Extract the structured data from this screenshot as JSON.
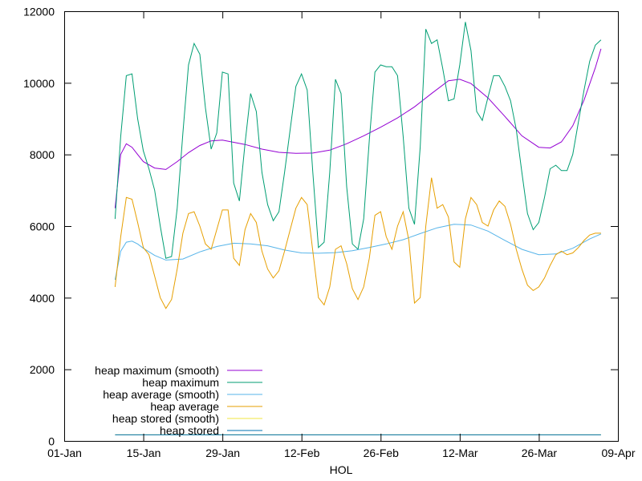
{
  "chart_data": {
    "type": "line",
    "title": "",
    "xlabel": "HOL",
    "ylabel": "",
    "x_axis_type": "date",
    "xlim": [
      "2023-01-01",
      "2023-04-09"
    ],
    "ylim": [
      0,
      12000
    ],
    "x_ticks": [
      "01-Jan",
      "15-Jan",
      "29-Jan",
      "12-Feb",
      "26-Feb",
      "12-Mar",
      "26-Mar",
      "09-Apr"
    ],
    "y_ticks": [
      "0",
      "2000",
      "4000",
      "6000",
      "8000",
      "10000",
      "12000"
    ],
    "grid": false,
    "legend_position": "bottom-left",
    "series": [
      {
        "name": "heap maximum (smooth)",
        "color": "#9400d3",
        "x": [
          "2023-01-10",
          "2023-01-11",
          "2023-01-12",
          "2023-01-13",
          "2023-01-14",
          "2023-01-15",
          "2023-01-17",
          "2023-01-19",
          "2023-01-21",
          "2023-01-23",
          "2023-01-25",
          "2023-01-27",
          "2023-01-29",
          "2023-01-31",
          "2023-02-02",
          "2023-02-05",
          "2023-02-08",
          "2023-02-11",
          "2023-02-14",
          "2023-02-17",
          "2023-02-20",
          "2023-02-23",
          "2023-02-26",
          "2023-03-01",
          "2023-03-04",
          "2023-03-07",
          "2023-03-10",
          "2023-03-12",
          "2023-03-14",
          "2023-03-17",
          "2023-03-20",
          "2023-03-23",
          "2023-03-26",
          "2023-03-28",
          "2023-03-30",
          "2023-04-01",
          "2023-04-03",
          "2023-04-05",
          "2023-04-06"
        ],
        "values": [
          6500,
          8000,
          8300,
          8200,
          8000,
          7800,
          7620,
          7580,
          7800,
          8050,
          8250,
          8380,
          8400,
          8340,
          8280,
          8150,
          8060,
          8030,
          8040,
          8120,
          8300,
          8520,
          8760,
          9020,
          9330,
          9700,
          10060,
          10100,
          9980,
          9580,
          9060,
          8520,
          8200,
          8180,
          8350,
          8800,
          9520,
          10420,
          10950
        ]
      },
      {
        "name": "heap maximum",
        "color": "#009e73",
        "x": [
          "2023-01-10",
          "2023-01-11",
          "2023-01-12",
          "2023-01-13",
          "2023-01-14",
          "2023-01-15",
          "2023-01-16",
          "2023-01-17",
          "2023-01-18",
          "2023-01-19",
          "2023-01-20",
          "2023-01-21",
          "2023-01-22",
          "2023-01-23",
          "2023-01-24",
          "2023-01-25",
          "2023-01-26",
          "2023-01-27",
          "2023-01-28",
          "2023-01-29",
          "2023-01-30",
          "2023-01-31",
          "2023-02-01",
          "2023-02-02",
          "2023-02-03",
          "2023-02-04",
          "2023-02-05",
          "2023-02-06",
          "2023-02-07",
          "2023-02-08",
          "2023-02-09",
          "2023-02-10",
          "2023-02-11",
          "2023-02-12",
          "2023-02-13",
          "2023-02-14",
          "2023-02-15",
          "2023-02-16",
          "2023-02-17",
          "2023-02-18",
          "2023-02-19",
          "2023-02-20",
          "2023-02-21",
          "2023-02-22",
          "2023-02-23",
          "2023-02-24",
          "2023-02-25",
          "2023-02-26",
          "2023-02-27",
          "2023-02-28",
          "2023-03-01",
          "2023-03-02",
          "2023-03-03",
          "2023-03-04",
          "2023-03-05",
          "2023-03-06",
          "2023-03-07",
          "2023-03-08",
          "2023-03-09",
          "2023-03-10",
          "2023-03-11",
          "2023-03-12",
          "2023-03-13",
          "2023-03-14",
          "2023-03-15",
          "2023-03-16",
          "2023-03-17",
          "2023-03-18",
          "2023-03-19",
          "2023-03-20",
          "2023-03-21",
          "2023-03-22",
          "2023-03-23",
          "2023-03-24",
          "2023-03-25",
          "2023-03-26",
          "2023-03-27",
          "2023-03-28",
          "2023-03-29",
          "2023-03-30",
          "2023-03-31",
          "2023-04-01",
          "2023-04-02",
          "2023-04-03",
          "2023-04-04",
          "2023-04-05",
          "2023-04-06"
        ],
        "values": [
          6200,
          8500,
          10200,
          10250,
          9000,
          8100,
          7600,
          7000,
          6000,
          5100,
          5150,
          6500,
          8600,
          10500,
          11100,
          10800,
          9300,
          8150,
          8600,
          10300,
          10250,
          7200,
          6700,
          8300,
          9700,
          9200,
          7500,
          6600,
          6150,
          6400,
          7500,
          8700,
          9900,
          10250,
          9800,
          7500,
          5400,
          5550,
          7500,
          10100,
          9700,
          7100,
          5500,
          5350,
          6200,
          8400,
          10300,
          10500,
          10450,
          10450,
          10200,
          8500,
          6500,
          6050,
          8200,
          11500,
          11100,
          11200,
          10400,
          9500,
          9550,
          10500,
          11700,
          10900,
          9200,
          8950,
          9600,
          10200,
          10200,
          9900,
          9500,
          8700,
          7500,
          6350,
          5900,
          6100,
          6800,
          7600,
          7700,
          7550,
          7550,
          8000,
          8900,
          9800,
          10600,
          11050,
          11200
        ]
      },
      {
        "name": "heap average (smooth)",
        "color": "#56b4e9",
        "x": [
          "2023-01-10",
          "2023-01-11",
          "2023-01-12",
          "2023-01-13",
          "2023-01-14",
          "2023-01-15",
          "2023-01-17",
          "2023-01-19",
          "2023-01-22",
          "2023-01-25",
          "2023-01-28",
          "2023-01-31",
          "2023-02-03",
          "2023-02-06",
          "2023-02-09",
          "2023-02-12",
          "2023-02-15",
          "2023-02-18",
          "2023-02-21",
          "2023-02-24",
          "2023-02-27",
          "2023-03-02",
          "2023-03-05",
          "2023-03-08",
          "2023-03-11",
          "2023-03-14",
          "2023-03-17",
          "2023-03-20",
          "2023-03-23",
          "2023-03-26",
          "2023-03-29",
          "2023-04-01",
          "2023-04-04",
          "2023-04-06"
        ],
        "values": [
          4500,
          5300,
          5550,
          5580,
          5500,
          5380,
          5180,
          5050,
          5080,
          5280,
          5430,
          5520,
          5500,
          5450,
          5330,
          5250,
          5240,
          5260,
          5310,
          5400,
          5500,
          5620,
          5790,
          5950,
          6050,
          6030,
          5860,
          5600,
          5350,
          5200,
          5220,
          5380,
          5640,
          5780
        ]
      },
      {
        "name": "heap average",
        "color": "#e69f00",
        "x": [
          "2023-01-10",
          "2023-01-11",
          "2023-01-12",
          "2023-01-13",
          "2023-01-14",
          "2023-01-15",
          "2023-01-16",
          "2023-01-17",
          "2023-01-18",
          "2023-01-19",
          "2023-01-20",
          "2023-01-21",
          "2023-01-22",
          "2023-01-23",
          "2023-01-24",
          "2023-01-25",
          "2023-01-26",
          "2023-01-27",
          "2023-01-28",
          "2023-01-29",
          "2023-01-30",
          "2023-01-31",
          "2023-02-01",
          "2023-02-02",
          "2023-02-03",
          "2023-02-04",
          "2023-02-05",
          "2023-02-06",
          "2023-02-07",
          "2023-02-08",
          "2023-02-09",
          "2023-02-10",
          "2023-02-11",
          "2023-02-12",
          "2023-02-13",
          "2023-02-14",
          "2023-02-15",
          "2023-02-16",
          "2023-02-17",
          "2023-02-18",
          "2023-02-19",
          "2023-02-20",
          "2023-02-21",
          "2023-02-22",
          "2023-02-23",
          "2023-02-24",
          "2023-02-25",
          "2023-02-26",
          "2023-02-27",
          "2023-02-28",
          "2023-03-01",
          "2023-03-02",
          "2023-03-03",
          "2023-03-04",
          "2023-03-05",
          "2023-03-06",
          "2023-03-07",
          "2023-03-08",
          "2023-03-09",
          "2023-03-10",
          "2023-03-11",
          "2023-03-12",
          "2023-03-13",
          "2023-03-14",
          "2023-03-15",
          "2023-03-16",
          "2023-03-17",
          "2023-03-18",
          "2023-03-19",
          "2023-03-20",
          "2023-03-21",
          "2023-03-22",
          "2023-03-23",
          "2023-03-24",
          "2023-03-25",
          "2023-03-26",
          "2023-03-27",
          "2023-03-28",
          "2023-03-29",
          "2023-03-30",
          "2023-03-31",
          "2023-04-01",
          "2023-04-02",
          "2023-04-03",
          "2023-04-04",
          "2023-04-05",
          "2023-04-06"
        ],
        "values": [
          4300,
          5700,
          6800,
          6750,
          6100,
          5400,
          5200,
          4600,
          4000,
          3700,
          3950,
          4800,
          5800,
          6350,
          6400,
          6000,
          5500,
          5350,
          5900,
          6450,
          6450,
          5100,
          4900,
          5900,
          6350,
          6100,
          5300,
          4800,
          4550,
          4750,
          5300,
          5900,
          6500,
          6800,
          6600,
          5300,
          4000,
          3800,
          4300,
          5350,
          5450,
          4950,
          4250,
          3950,
          4300,
          5100,
          6300,
          6400,
          5700,
          5350,
          6000,
          6400,
          5600,
          3850,
          4000,
          6000,
          7350,
          6500,
          6600,
          6250,
          5000,
          4850,
          6200,
          6800,
          6600,
          6100,
          6000,
          6450,
          6700,
          6550,
          6050,
          5350,
          4800,
          4350,
          4200,
          4300,
          4550,
          4900,
          5200,
          5300,
          5200,
          5250,
          5400,
          5600,
          5750,
          5800,
          5800
        ]
      },
      {
        "name": "heap stored (smooth)",
        "color": "#f0e442",
        "x": [
          "2023-01-10",
          "2023-04-06"
        ],
        "values": [
          170,
          170
        ]
      },
      {
        "name": "heap stored",
        "color": "#0072b2",
        "x": [
          "2023-01-10",
          "2023-04-06"
        ],
        "values": [
          170,
          170
        ]
      }
    ]
  }
}
